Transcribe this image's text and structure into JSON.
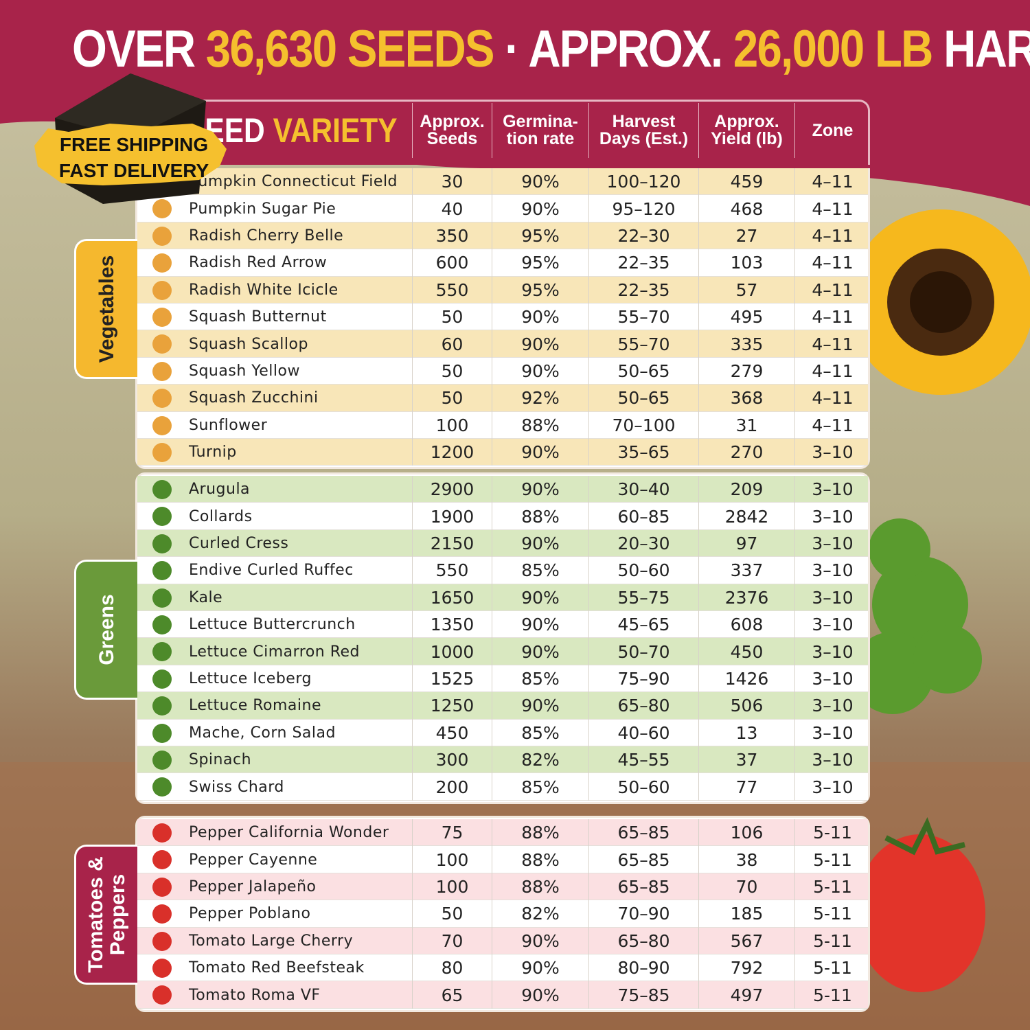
{
  "title": {
    "lead": "OVER",
    "seeds": "36,630 SEEDS",
    "middle": "· APPROX.",
    "harvest": "26,000 LB",
    "tail": "HARVEST"
  },
  "badge": {
    "line1": "FREE SHIPPING",
    "line2": "FAST DELIVERY"
  },
  "header": {
    "seed": "SEED",
    "variety": "VARIETY",
    "columns": [
      "Approx. Seeds",
      "Germina- tion rate",
      "Harvest Days (Est.)",
      "Approx. Yield (lb)",
      "Zone"
    ]
  },
  "sections": [
    {
      "label": "Vegetables",
      "rows": [
        [
          "Pumpkin Connecticut Field",
          "30",
          "90%",
          "100–120",
          "459",
          "4–11"
        ],
        [
          "Pumpkin Sugar Pie",
          "40",
          "90%",
          "95–120",
          "468",
          "4–11"
        ],
        [
          "Radish Cherry Belle",
          "350",
          "95%",
          "22–30",
          "27",
          "4–11"
        ],
        [
          "Radish Red Arrow",
          "600",
          "95%",
          "22–35",
          "103",
          "4–11"
        ],
        [
          "Radish White Icicle",
          "550",
          "95%",
          "22–35",
          "57",
          "4–11"
        ],
        [
          "Squash Butternut",
          "50",
          "90%",
          "55–70",
          "495",
          "4–11"
        ],
        [
          "Squash Scallop",
          "60",
          "90%",
          "55–70",
          "335",
          "4–11"
        ],
        [
          "Squash Yellow",
          "50",
          "90%",
          "50–65",
          "279",
          "4–11"
        ],
        [
          "Squash Zucchini",
          "50",
          "92%",
          "50–65",
          "368",
          "4–11"
        ],
        [
          "Sunflower",
          "100",
          "88%",
          "70–100",
          "31",
          "4–11"
        ],
        [
          "Turnip",
          "1200",
          "90%",
          "35–65",
          "270",
          "3–10"
        ]
      ]
    },
    {
      "label": "Greens",
      "rows": [
        [
          "Arugula",
          "2900",
          "90%",
          "30–40",
          "209",
          "3–10"
        ],
        [
          "Collards",
          "1900",
          "88%",
          "60–85",
          "2842",
          "3–10"
        ],
        [
          "Curled Cress",
          "2150",
          "90%",
          "20–30",
          "97",
          "3–10"
        ],
        [
          "Endive Curled Ruffec",
          "550",
          "85%",
          "50–60",
          "337",
          "3–10"
        ],
        [
          "Kale",
          "1650",
          "90%",
          "55–75",
          "2376",
          "3–10"
        ],
        [
          "Lettuce Buttercrunch",
          "1350",
          "90%",
          "45–65",
          "608",
          "3–10"
        ],
        [
          "Lettuce Cimarron Red",
          "1000",
          "90%",
          "50–70",
          "450",
          "3–10"
        ],
        [
          "Lettuce Iceberg",
          "1525",
          "85%",
          "75–90",
          "1426",
          "3–10"
        ],
        [
          "Lettuce Romaine",
          "1250",
          "90%",
          "65–80",
          "506",
          "3–10"
        ],
        [
          "Mache, Corn Salad",
          "450",
          "85%",
          "40–60",
          "13",
          "3–10"
        ],
        [
          "Spinach",
          "300",
          "82%",
          "45–55",
          "37",
          "3–10"
        ],
        [
          "Swiss Chard",
          "200",
          "85%",
          "50–60",
          "77",
          "3–10"
        ]
      ]
    },
    {
      "label": "Tomatoes & Peppers",
      "rows": [
        [
          "Pepper California Wonder",
          "75",
          "88%",
          "65–85",
          "106",
          "5-11"
        ],
        [
          "Pepper Cayenne",
          "100",
          "88%",
          "65–85",
          "38",
          "5-11"
        ],
        [
          "Pepper Jalapeño",
          "100",
          "88%",
          "65–85",
          "70",
          "5-11"
        ],
        [
          "Pepper Poblano",
          "50",
          "82%",
          "70–90",
          "185",
          "5-11"
        ],
        [
          "Tomato Large Cherry",
          "70",
          "90%",
          "65–80",
          "567",
          "5-11"
        ],
        [
          "Tomato Red Beefsteak",
          "80",
          "90%",
          "80–90",
          "792",
          "5-11"
        ],
        [
          "Tomato Roma VF",
          "65",
          "90%",
          "75–85",
          "497",
          "5-11"
        ]
      ]
    }
  ]
}
